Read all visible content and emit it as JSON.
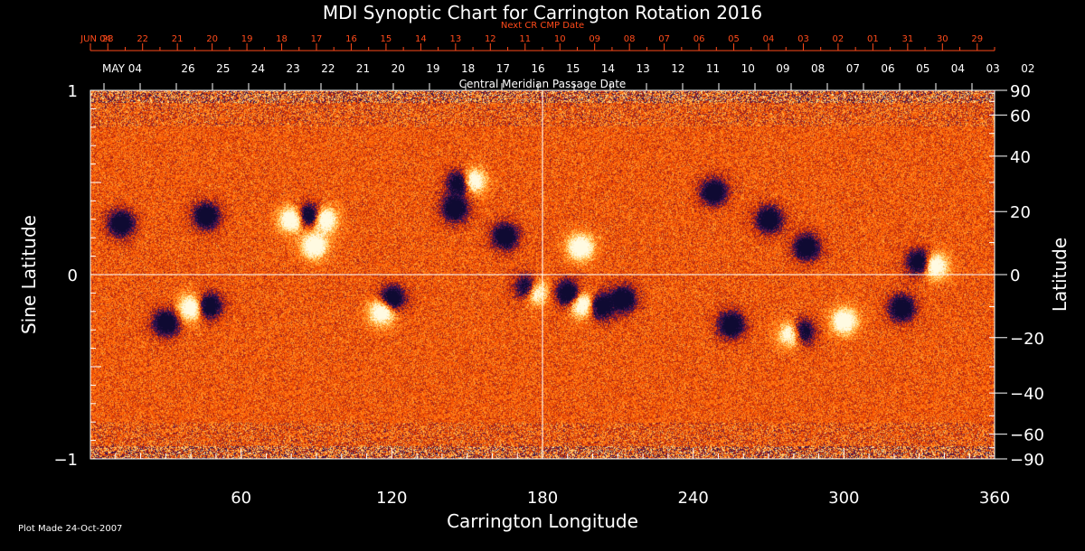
{
  "title": "MDI Synoptic Chart for Carrington Rotation 2016",
  "footer": "Plot Made 24-Oct-2007",
  "colors": {
    "background": "#000000",
    "axis": "#ffffff",
    "next_cr_dates": "#ff4a1a",
    "map_mid": "#ff5a00",
    "positive_polarity": "#fff4c8",
    "negative_polarity": "#1a1060"
  },
  "chart_data": {
    "type": "heatmap",
    "title": "MDI Synoptic Chart for Carrington Rotation 2016",
    "xlabel": "Carrington Longitude",
    "ylabel_left": "Sine Latitude",
    "ylabel_right": "Latitude",
    "xlim": [
      0,
      360
    ],
    "ylim": [
      -1,
      1
    ],
    "x_ticks": [
      60,
      120,
      180,
      240,
      300,
      360
    ],
    "y_left_ticks": [
      1,
      0,
      -1
    ],
    "y_left_tick_labels": [
      "1",
      "0",
      "−1"
    ],
    "y_right_ticks_deg": [
      90,
      60,
      40,
      20,
      0,
      -20,
      -40,
      -60,
      -90
    ],
    "y_right_tick_labels": [
      "90",
      "60",
      "40",
      "20",
      "0",
      "−20",
      "−40",
      "−60",
      "−90"
    ],
    "grid": "crosshair at longitude 180 and latitude 0",
    "top_axis_1": {
      "title": "Next CR CMP Date",
      "labels": [
        "JUN 04",
        "23",
        "22",
        "21",
        "20",
        "19",
        "18",
        "17",
        "16",
        "15",
        "14",
        "13",
        "12",
        "11",
        "10",
        "09",
        "08",
        "07",
        "06",
        "05",
        "04",
        "03",
        "02",
        "01",
        "31",
        "30",
        "29"
      ]
    },
    "top_axis_2": {
      "title": "Central Meridian Passage Date",
      "labels": [
        "MAY 04",
        "26",
        "25",
        "24",
        "23",
        "22",
        "21",
        "20",
        "19",
        "18",
        "17",
        "16",
        "15",
        "14",
        "13",
        "12",
        "11",
        "10",
        "09",
        "08",
        "07",
        "06",
        "05",
        "04",
        "03",
        "02"
      ]
    },
    "features": [
      {
        "lon": 40,
        "sinlat": -0.18,
        "polarity": "positive"
      },
      {
        "lon": 47,
        "sinlat": -0.17,
        "polarity": "negative"
      },
      {
        "lon": 30,
        "sinlat": -0.26,
        "polarity": "negative"
      },
      {
        "lon": 87,
        "sinlat": 0.32,
        "polarity": "negative"
      },
      {
        "lon": 93,
        "sinlat": 0.3,
        "polarity": "positive"
      },
      {
        "lon": 80,
        "sinlat": 0.3,
        "polarity": "positive"
      },
      {
        "lon": 89,
        "sinlat": 0.16,
        "polarity": "positive"
      },
      {
        "lon": 46,
        "sinlat": 0.32,
        "polarity": "negative"
      },
      {
        "lon": 12,
        "sinlat": 0.28,
        "polarity": "negative"
      },
      {
        "lon": 120,
        "sinlat": -0.13,
        "polarity": "negative"
      },
      {
        "lon": 116,
        "sinlat": -0.2,
        "polarity": "positive"
      },
      {
        "lon": 147,
        "sinlat": 0.5,
        "polarity": "negative"
      },
      {
        "lon": 152,
        "sinlat": 0.51,
        "polarity": "positive"
      },
      {
        "lon": 145,
        "sinlat": 0.36,
        "polarity": "negative"
      },
      {
        "lon": 165,
        "sinlat": 0.21,
        "polarity": "negative"
      },
      {
        "lon": 174,
        "sinlat": -0.07,
        "polarity": "negative"
      },
      {
        "lon": 177,
        "sinlat": -0.09,
        "polarity": "positive"
      },
      {
        "lon": 190,
        "sinlat": -0.1,
        "polarity": "negative"
      },
      {
        "lon": 196,
        "sinlat": -0.16,
        "polarity": "positive"
      },
      {
        "lon": 203,
        "sinlat": -0.17,
        "polarity": "negative"
      },
      {
        "lon": 212,
        "sinlat": -0.13,
        "polarity": "negative"
      },
      {
        "lon": 195,
        "sinlat": 0.15,
        "polarity": "positive"
      },
      {
        "lon": 279,
        "sinlat": -0.32,
        "polarity": "positive"
      },
      {
        "lon": 283,
        "sinlat": -0.31,
        "polarity": "negative"
      },
      {
        "lon": 255,
        "sinlat": -0.27,
        "polarity": "negative"
      },
      {
        "lon": 300,
        "sinlat": -0.25,
        "polarity": "positive"
      },
      {
        "lon": 323,
        "sinlat": -0.18,
        "polarity": "negative"
      },
      {
        "lon": 330,
        "sinlat": 0.07,
        "polarity": "negative"
      },
      {
        "lon": 336,
        "sinlat": 0.05,
        "polarity": "positive"
      },
      {
        "lon": 248,
        "sinlat": 0.45,
        "polarity": "negative"
      },
      {
        "lon": 270,
        "sinlat": 0.3,
        "polarity": "negative"
      },
      {
        "lon": 285,
        "sinlat": 0.15,
        "polarity": "negative"
      }
    ]
  }
}
